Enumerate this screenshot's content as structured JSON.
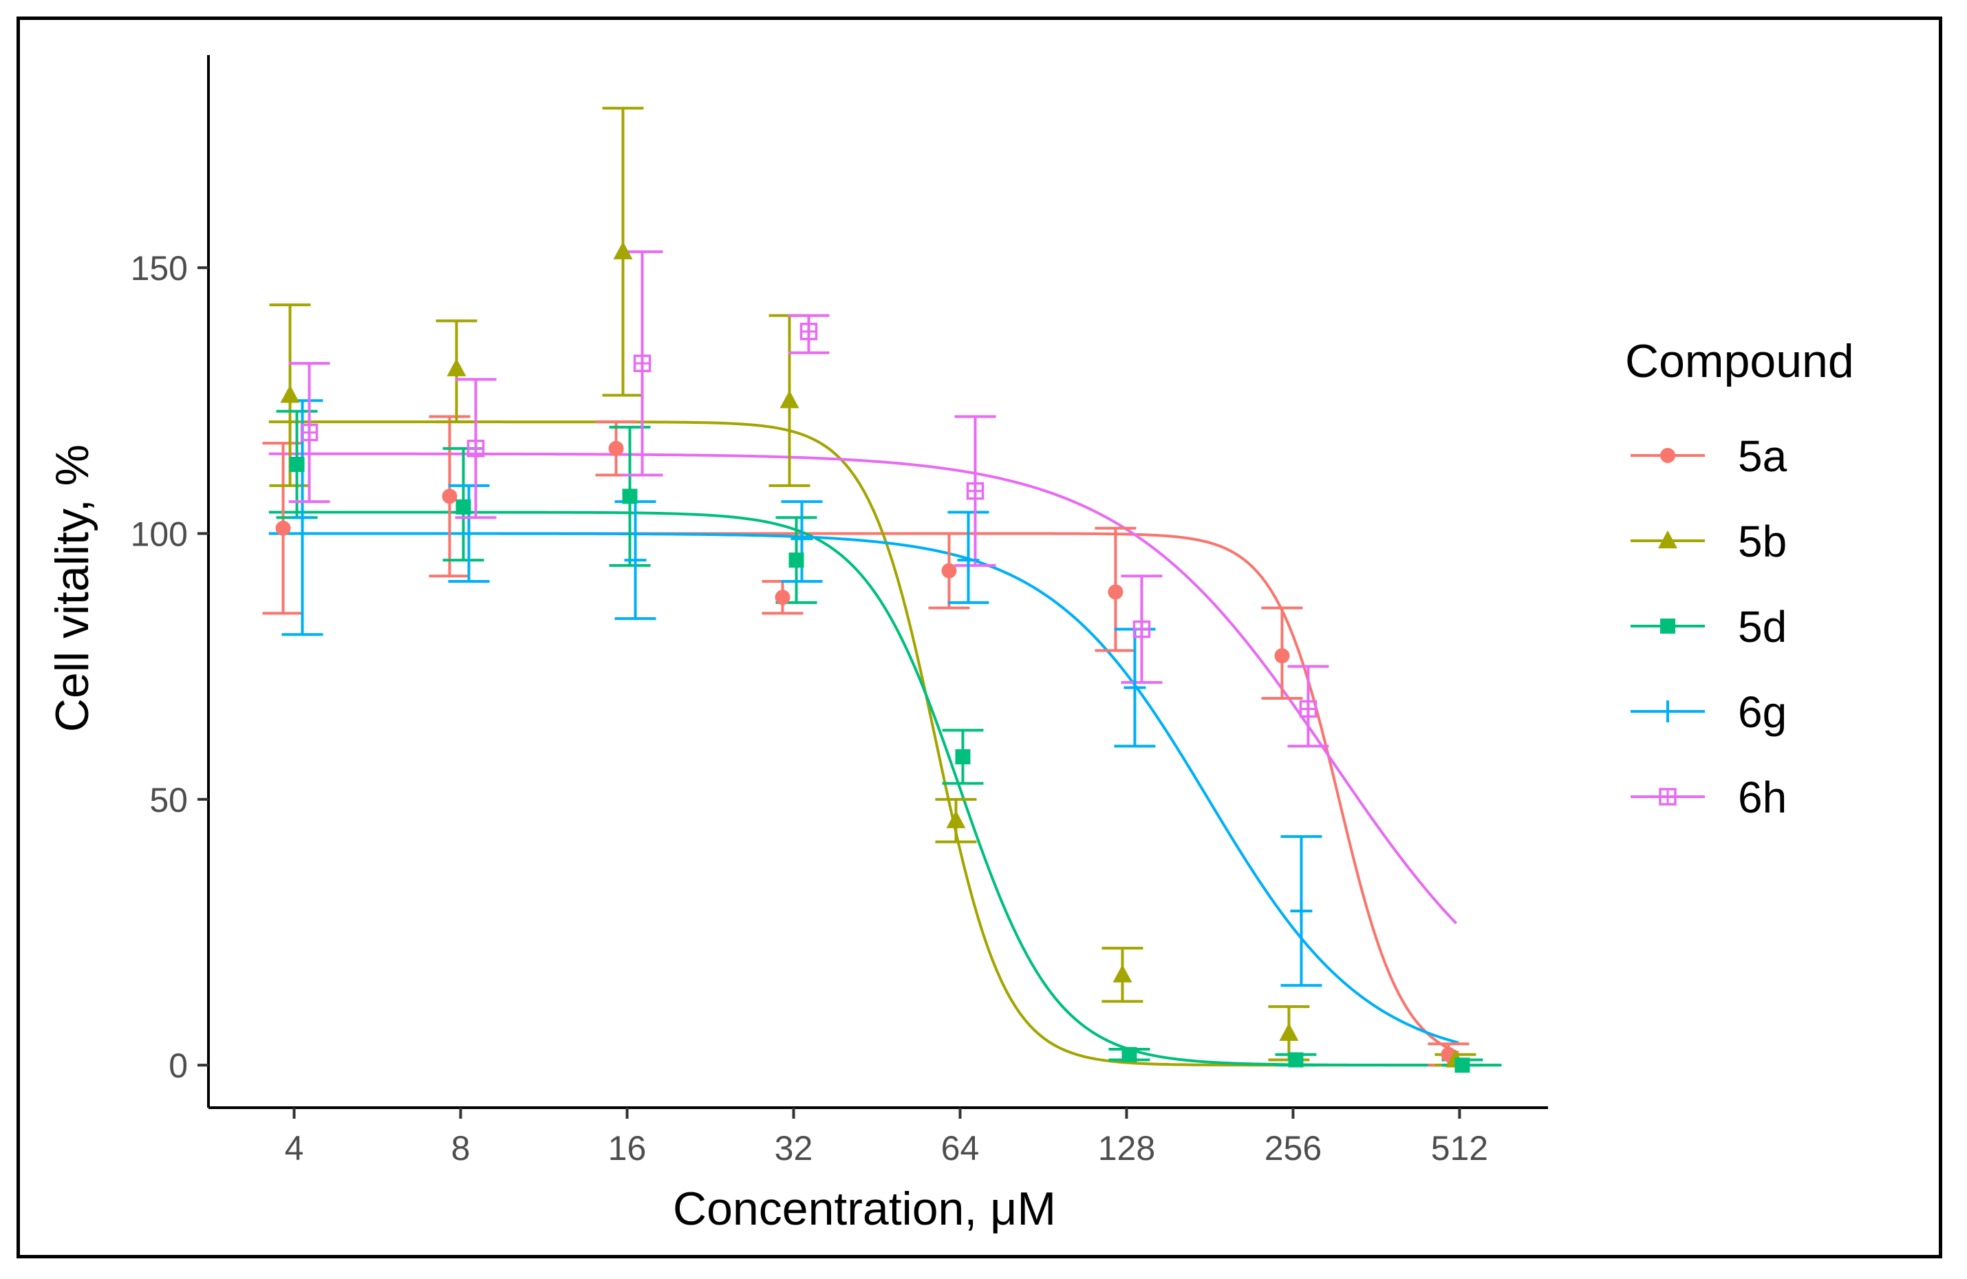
{
  "chart_data": {
    "type": "line",
    "xlabel": "Concentration, μM",
    "ylabel": "Cell vitality, %",
    "x_scale": "log2",
    "x_ticks": [
      4,
      8,
      16,
      32,
      64,
      128,
      256,
      512
    ],
    "x_tick_labels": [
      "4",
      "8",
      "16",
      "32",
      "64",
      "128",
      "256",
      "512"
    ],
    "xlim": [
      2.8,
      740
    ],
    "y_ticks": [
      0,
      50,
      100,
      150
    ],
    "y_tick_labels": [
      "0",
      "50",
      "100",
      "150"
    ],
    "ylim": [
      -8,
      190
    ],
    "legend": {
      "title": "Compound",
      "position": "right"
    },
    "series": [
      {
        "name": "5a",
        "color": "#F8766D",
        "marker": "circle",
        "points": [
          {
            "x": 4,
            "y": 101,
            "lo": 85,
            "hi": 117
          },
          {
            "x": 8,
            "y": 107,
            "lo": 92,
            "hi": 122
          },
          {
            "x": 16,
            "y": 116,
            "lo": 111,
            "hi": 121
          },
          {
            "x": 32,
            "y": 88,
            "lo": 85,
            "hi": 91
          },
          {
            "x": 64,
            "y": 93,
            "lo": 86,
            "hi": 100
          },
          {
            "x": 128,
            "y": 89,
            "lo": 78,
            "hi": 101
          },
          {
            "x": 256,
            "y": 77,
            "lo": 69,
            "hi": 86
          },
          {
            "x": 512,
            "y": 2,
            "lo": 0,
            "hi": 4
          }
        ],
        "fit": {
          "top": 100,
          "bottom": 0,
          "ec50": 310,
          "hill": 7.5,
          "xmin": 3.6,
          "xmax": 510
        }
      },
      {
        "name": "5b",
        "color": "#A3A500",
        "marker": "triangle",
        "points": [
          {
            "x": 4,
            "y": 126,
            "lo": 109,
            "hi": 143
          },
          {
            "x": 8,
            "y": 131,
            "lo": 121,
            "hi": 140
          },
          {
            "x": 16,
            "y": 153,
            "lo": 126,
            "hi": 180
          },
          {
            "x": 32,
            "y": 125,
            "lo": 109,
            "hi": 141
          },
          {
            "x": 64,
            "y": 46,
            "lo": 42,
            "hi": 50
          },
          {
            "x": 128,
            "y": 17,
            "lo": 12,
            "hi": 22
          },
          {
            "x": 256,
            "y": 6,
            "lo": 1,
            "hi": 11
          },
          {
            "x": 512,
            "y": 1,
            "lo": 0,
            "hi": 2
          }
        ],
        "fit": {
          "top": 121,
          "bottom": 0,
          "ec50": 58,
          "hill": 7.0,
          "xmin": 3.6,
          "xmax": 600
        }
      },
      {
        "name": "5d",
        "color": "#00BF7D",
        "marker": "square",
        "points": [
          {
            "x": 4,
            "y": 113,
            "lo": 103,
            "hi": 123
          },
          {
            "x": 8,
            "y": 105,
            "lo": 95,
            "hi": 116
          },
          {
            "x": 16,
            "y": 107,
            "lo": 94,
            "hi": 120
          },
          {
            "x": 32,
            "y": 95,
            "lo": 87,
            "hi": 103
          },
          {
            "x": 64,
            "y": 58,
            "lo": 53,
            "hi": 63
          },
          {
            "x": 128,
            "y": 2,
            "lo": 1,
            "hi": 3
          },
          {
            "x": 256,
            "y": 1,
            "lo": 0,
            "hi": 2
          },
          {
            "x": 512,
            "y": 0,
            "lo": 0,
            "hi": 1
          }
        ],
        "fit": {
          "top": 104,
          "bottom": 0,
          "ec50": 64,
          "hill": 5.0,
          "xmin": 3.6,
          "xmax": 610
        }
      },
      {
        "name": "6g",
        "color": "#00B0F6",
        "marker": "plus",
        "points": [
          {
            "x": 4,
            "y": 103,
            "lo": 81,
            "hi": 125
          },
          {
            "x": 8,
            "y": 100,
            "lo": 91,
            "hi": 109
          },
          {
            "x": 16,
            "y": 95,
            "lo": 84,
            "hi": 106
          },
          {
            "x": 32,
            "y": 99,
            "lo": 91,
            "hi": 106
          },
          {
            "x": 64,
            "y": 95,
            "lo": 87,
            "hi": 104
          },
          {
            "x": 128,
            "y": 71,
            "lo": 60,
            "hi": 82
          },
          {
            "x": 256,
            "y": 29,
            "lo": 15,
            "hi": 43
          }
        ],
        "fit": {
          "top": 100,
          "bottom": 0,
          "ec50": 180,
          "hill": 3.0,
          "xmin": 3.6,
          "xmax": 510
        }
      },
      {
        "name": "6h",
        "color": "#E76BF3",
        "marker": "square-open",
        "points": [
          {
            "x": 4,
            "y": 119,
            "lo": 106,
            "hi": 132
          },
          {
            "x": 8,
            "y": 116,
            "lo": 103,
            "hi": 129
          },
          {
            "x": 16,
            "y": 132,
            "lo": 111,
            "hi": 153
          },
          {
            "x": 32,
            "y": 138,
            "lo": 134,
            "hi": 141
          },
          {
            "x": 64,
            "y": 108,
            "lo": 94,
            "hi": 122
          },
          {
            "x": 128,
            "y": 82,
            "lo": 72,
            "hi": 92
          },
          {
            "x": 256,
            "y": 67,
            "lo": 60,
            "hi": 75
          }
        ],
        "fit": {
          "top": 115,
          "bottom": 0,
          "ec50": 300,
          "hill": 2.3,
          "xmin": 3.6,
          "xmax": 505
        }
      }
    ]
  }
}
